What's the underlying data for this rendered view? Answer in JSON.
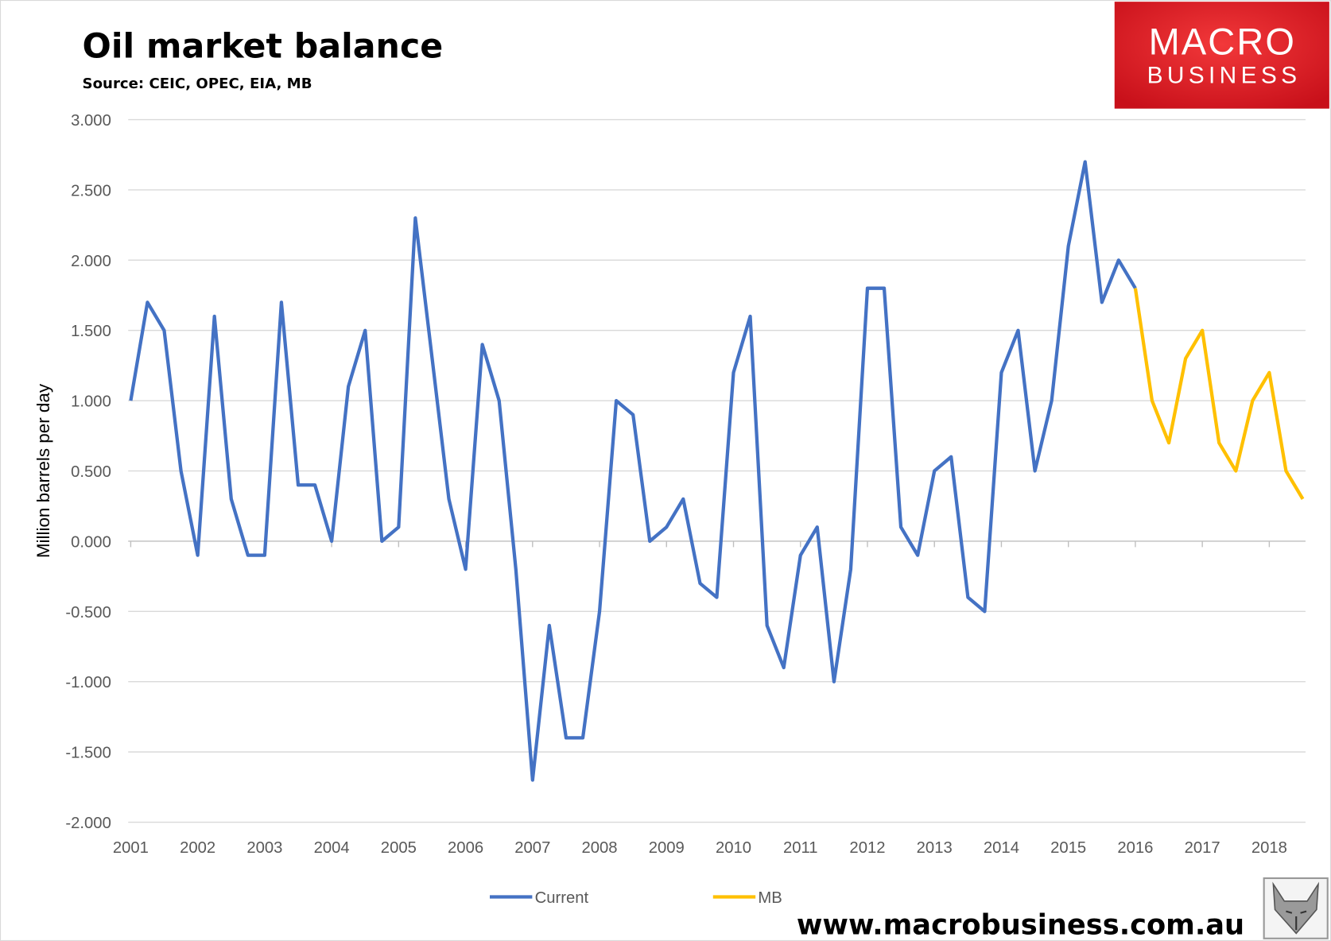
{
  "chart_data": {
    "type": "line",
    "title": "Oil market balance",
    "subtitle": "Source: CEIC, OPEC, EIA, MB",
    "ylabel": "Million barrels per day",
    "xlabel": "",
    "ylim": [
      -2.0,
      3.0
    ],
    "yticks": [
      "3.000",
      "2.500",
      "2.000",
      "1.500",
      "1.000",
      "0.500",
      "0.000",
      "-0.500",
      "-1.000",
      "-1.500",
      "-2.000"
    ],
    "ytick_values": [
      3,
      2.5,
      2,
      1.5,
      1,
      0.5,
      0,
      -0.5,
      -1,
      -1.5,
      -2
    ],
    "xticks": [
      "2001",
      "2002",
      "2003",
      "2004",
      "2005",
      "2006",
      "2007",
      "2008",
      "2009",
      "2010",
      "2011",
      "2012",
      "2013",
      "2014",
      "2015",
      "2016",
      "2017",
      "2018"
    ],
    "x_start": 2001,
    "x_step": 0.25,
    "xlim": [
      2001,
      2018.75
    ],
    "grid": true,
    "legend_position": "bottom",
    "series": [
      {
        "name": "Current",
        "color": "#4472C4",
        "start_index": 0,
        "values": [
          1.0,
          1.7,
          1.5,
          0.5,
          -0.1,
          1.6,
          0.3,
          -0.1,
          -0.1,
          1.7,
          0.4,
          0.4,
          0.0,
          1.1,
          1.5,
          0.0,
          0.1,
          2.3,
          1.3,
          0.3,
          -0.2,
          1.4,
          1.0,
          -0.2,
          -1.7,
          -0.6,
          -1.4,
          -1.4,
          -0.5,
          1.0,
          0.9,
          0.0,
          0.1,
          0.3,
          -0.3,
          -0.4,
          1.2,
          1.6,
          -0.6,
          -0.9,
          -0.1,
          0.1,
          -1.0,
          -0.2,
          1.8,
          1.8,
          0.1,
          -0.1,
          0.5,
          0.6,
          -0.4,
          -0.5,
          1.2,
          1.5,
          0.5,
          1.0,
          2.1,
          2.7,
          1.7,
          2.0,
          1.8
        ]
      },
      {
        "name": "MB",
        "color": "#FFC000",
        "start_index": 60,
        "values": [
          1.8,
          1.0,
          0.7,
          1.3,
          1.5,
          0.7,
          0.5,
          1.0,
          1.2,
          0.5,
          0.3
        ]
      }
    ]
  },
  "logo": {
    "line1": "MACRO",
    "line2": "BUSINESS"
  },
  "footer": {
    "url": "www.macrobusiness.com.au"
  }
}
